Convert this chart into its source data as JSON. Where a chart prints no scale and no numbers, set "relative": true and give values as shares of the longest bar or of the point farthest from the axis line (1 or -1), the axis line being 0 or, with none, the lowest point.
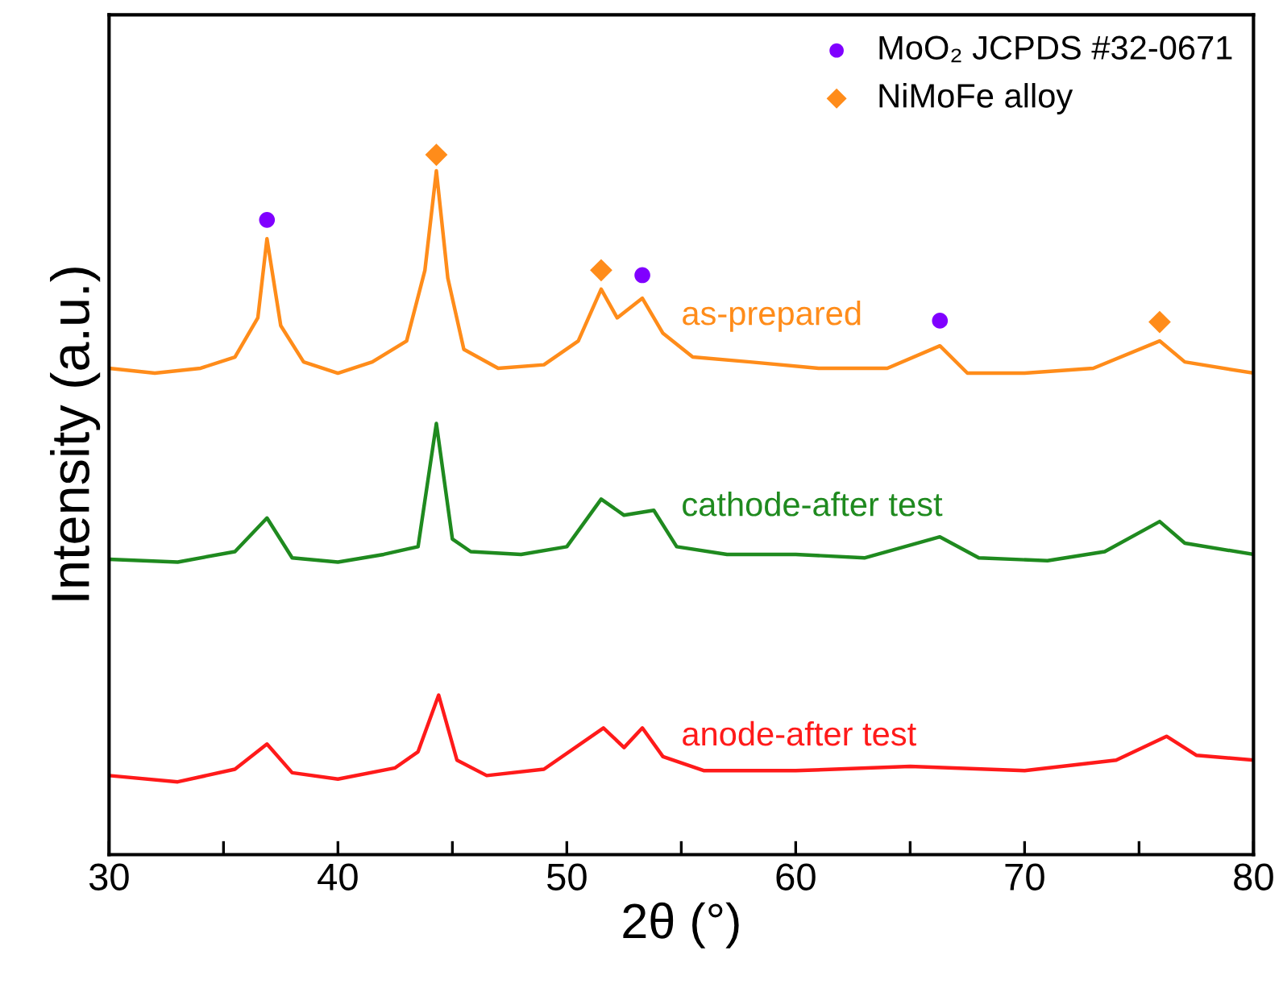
{
  "chart_data": {
    "type": "line",
    "relative": true,
    "xlabel": "2θ (°)",
    "ylabel": "Intensity (a.u.)",
    "xlim": [
      30,
      80
    ],
    "xticks": [
      30,
      {
        "value": 35,
        "label": null
      },
      40,
      {
        "value": 45,
        "label": null
      },
      50,
      {
        "value": 55,
        "label": null
      },
      60,
      {
        "value": 65,
        "label": null
      },
      70,
      {
        "value": 75,
        "label": null
      },
      80
    ],
    "tick_labels": "x",
    "grid": false,
    "legend": "top right",
    "marker": "none",
    "line_style": "solid",
    "series": [
      {
        "name": "as-prepared",
        "color": "#ff8c1a",
        "x": [
          30,
          32,
          34,
          35.5,
          36.5,
          36.9,
          37.5,
          38.5,
          40,
          41.5,
          43,
          43.8,
          44.3,
          44.8,
          45.5,
          47,
          49,
          50.5,
          51.5,
          52.2,
          53.3,
          54.2,
          55.5,
          58,
          61,
          64,
          66.3,
          67.5,
          70,
          73,
          75.9,
          77,
          80
        ],
        "values": [
          0.695,
          0.688,
          0.695,
          0.711,
          0.767,
          0.88,
          0.756,
          0.704,
          0.688,
          0.704,
          0.734,
          0.835,
          0.977,
          0.824,
          0.722,
          0.695,
          0.7,
          0.734,
          0.808,
          0.767,
          0.795,
          0.745,
          0.711,
          0.704,
          0.695,
          0.695,
          0.727,
          0.688,
          0.688,
          0.695,
          0.734,
          0.704,
          0.688
        ]
      },
      {
        "name": "cathode-after test",
        "color": "#1f8a1f",
        "x": [
          30,
          33,
          35.5,
          36.9,
          38,
          40,
          42,
          43.5,
          44.3,
          45,
          45.8,
          48,
          50,
          51.5,
          52.5,
          53.8,
          54.8,
          57,
          60,
          63,
          66.3,
          68,
          71,
          73.5,
          75.9,
          77,
          80
        ],
        "values": [
          0.422,
          0.418,
          0.433,
          0.481,
          0.424,
          0.418,
          0.429,
          0.44,
          0.616,
          0.451,
          0.433,
          0.429,
          0.44,
          0.508,
          0.485,
          0.492,
          0.44,
          0.429,
          0.429,
          0.424,
          0.454,
          0.424,
          0.42,
          0.433,
          0.476,
          0.445,
          0.429
        ]
      },
      {
        "name": "anode-after test",
        "color": "#ff1a1a",
        "x": [
          30,
          33,
          35.5,
          36.9,
          38,
          40,
          42.5,
          43.5,
          44.4,
          45.2,
          46.5,
          49,
          51.6,
          52.5,
          53.3,
          54.2,
          56,
          60,
          65,
          70,
          74,
          76.2,
          77.5,
          80
        ],
        "values": [
          0.113,
          0.104,
          0.122,
          0.158,
          0.117,
          0.108,
          0.124,
          0.147,
          0.228,
          0.135,
          0.113,
          0.122,
          0.181,
          0.153,
          0.181,
          0.14,
          0.12,
          0.12,
          0.126,
          0.12,
          0.135,
          0.169,
          0.142,
          0.135
        ]
      },
      {
        "name": "MoO₂ JCPDS #32-0671",
        "type": "scatter",
        "marker": "circle",
        "color": "#8000ff",
        "x": [
          36.9,
          53.3,
          66.3
        ],
        "values": [
          0.907,
          0.828,
          0.763
        ]
      },
      {
        "name": "NiMoFe alloy",
        "type": "scatter",
        "marker": "diamond",
        "color": "#ff8c1a",
        "x": [
          44.3,
          51.5,
          75.9
        ],
        "values": [
          1.0,
          0.835,
          0.761
        ]
      }
    ]
  }
}
